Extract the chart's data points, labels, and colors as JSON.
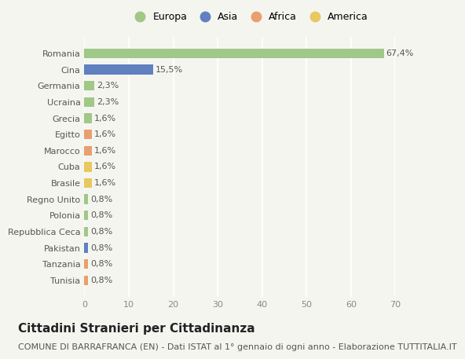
{
  "categories": [
    "Tunisia",
    "Tanzania",
    "Pakistan",
    "Repubblica Ceca",
    "Polonia",
    "Regno Unito",
    "Brasile",
    "Cuba",
    "Marocco",
    "Egitto",
    "Grecia",
    "Ucraina",
    "Germania",
    "Cina",
    "Romania"
  ],
  "values": [
    0.8,
    0.8,
    0.8,
    0.8,
    0.8,
    0.8,
    1.6,
    1.6,
    1.6,
    1.6,
    1.6,
    2.3,
    2.3,
    15.5,
    67.4
  ],
  "labels": [
    "0,8%",
    "0,8%",
    "0,8%",
    "0,8%",
    "0,8%",
    "0,8%",
    "1,6%",
    "1,6%",
    "1,6%",
    "1,6%",
    "1,6%",
    "2,3%",
    "2,3%",
    "15,5%",
    "67,4%"
  ],
  "colors": [
    "#e8a070",
    "#e8a070",
    "#6080c0",
    "#a0c888",
    "#a0c888",
    "#a0c888",
    "#e8c860",
    "#e8c860",
    "#e8a070",
    "#e8a070",
    "#a0c888",
    "#a0c888",
    "#a0c888",
    "#6080c0",
    "#a0c888"
  ],
  "legend_labels": [
    "Europa",
    "Asia",
    "Africa",
    "America"
  ],
  "legend_colors": [
    "#a0c888",
    "#6080c0",
    "#e8a070",
    "#e8c860"
  ],
  "title": "Cittadini Stranieri per Cittadinanza",
  "subtitle": "COMUNE DI BARRAFRANCA (EN) - Dati ISTAT al 1° gennaio di ogni anno - Elaborazione TUTTITALIA.IT",
  "xlim": [
    0,
    70
  ],
  "xticks": [
    0,
    10,
    20,
    30,
    40,
    50,
    60,
    70
  ],
  "background_color": "#f5f5f0",
  "bar_height": 0.6,
  "title_fontsize": 11,
  "subtitle_fontsize": 8,
  "tick_fontsize": 8,
  "label_fontsize": 8,
  "legend_fontsize": 9
}
